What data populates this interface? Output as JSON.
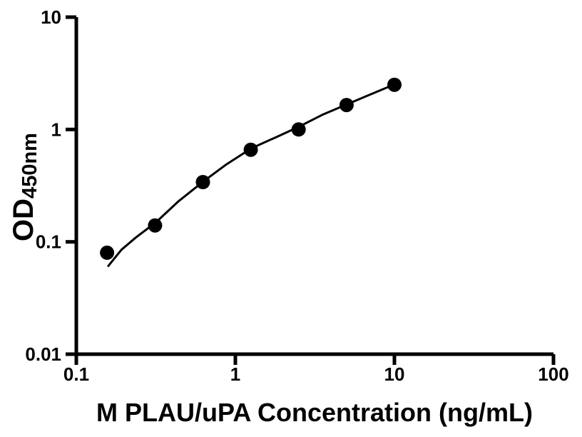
{
  "figure": {
    "background_color": "#ffffff",
    "foreground_color": "#000000"
  },
  "chart_data": {
    "type": "scatter",
    "x_scale": "log",
    "y_scale": "log",
    "title": "",
    "xlabel": "M PLAU/uPA Concentration (ng/mL)",
    "ylabel": "OD",
    "ylabel_subscript": "450nm",
    "xlim": [
      0.1,
      100
    ],
    "ylim": [
      0.01,
      10
    ],
    "x_ticks": [
      0.1,
      1,
      10,
      100
    ],
    "x_tick_labels": [
      "0.1",
      "1",
      "10",
      "100"
    ],
    "y_ticks": [
      10,
      1,
      0.1,
      0.01
    ],
    "y_tick_labels": [
      "10",
      "1",
      "0.1",
      "0.01"
    ],
    "grid": false,
    "legend": null,
    "series": [
      {
        "name": "standard-points",
        "marker": "circle",
        "marker_radius_px": 10,
        "color": "#000000",
        "x": [
          0.156,
          0.3125,
          0.625,
          1.25,
          2.5,
          5,
          10
        ],
        "y": [
          0.08,
          0.14,
          0.34,
          0.66,
          1.0,
          1.65,
          2.5
        ]
      }
    ],
    "fit_curve": {
      "name": "fitted-standard-curve",
      "color": "#000000",
      "points": [
        [
          0.159,
          0.061
        ],
        [
          0.192,
          0.085
        ],
        [
          0.236,
          0.109
        ],
        [
          0.318,
          0.15
        ],
        [
          0.438,
          0.229
        ],
        [
          0.63,
          0.345
        ],
        [
          0.88,
          0.49
        ],
        [
          1.26,
          0.68
        ],
        [
          1.76,
          0.84
        ],
        [
          2.48,
          1.05
        ],
        [
          3.52,
          1.35
        ],
        [
          5.06,
          1.68
        ],
        [
          7.11,
          2.06
        ],
        [
          10.0,
          2.52
        ]
      ]
    }
  }
}
